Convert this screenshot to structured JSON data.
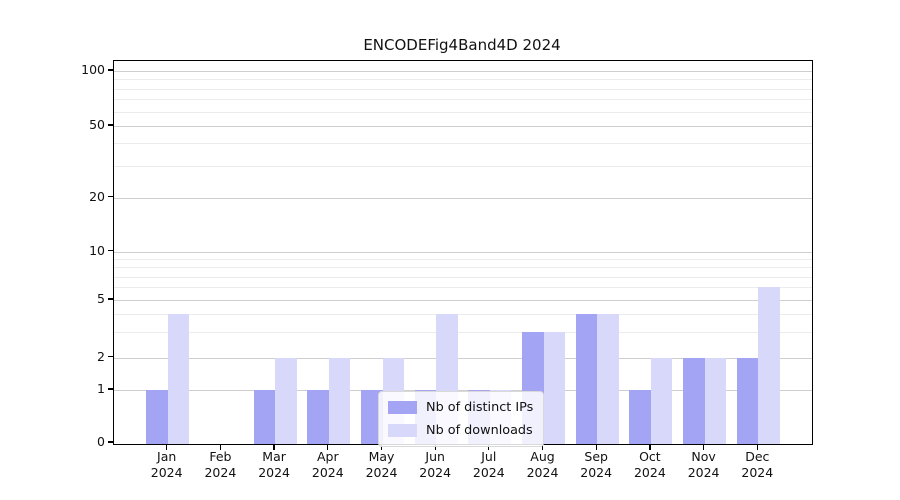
{
  "figure": {
    "title": "ENCODEFig4Band4D 2024"
  },
  "chart_data": {
    "type": "bar",
    "title": "ENCODEFig4Band4D 2024",
    "categories": [
      "Jan 2024",
      "Feb 2024",
      "Mar 2024",
      "Apr 2024",
      "May 2024",
      "Jun 2024",
      "Jul 2024",
      "Aug 2024",
      "Sep 2024",
      "Oct 2024",
      "Nov 2024",
      "Dec 2024"
    ],
    "series": [
      {
        "name": "Nb of distinct IPs",
        "color": "#a4a4f5",
        "values": [
          1,
          0,
          1,
          1,
          1,
          1,
          1,
          3,
          4,
          1,
          2,
          2
        ]
      },
      {
        "name": "Nb of downloads",
        "color": "#d8d8fa",
        "values": [
          4,
          0,
          2,
          2,
          2,
          4,
          1,
          3,
          4,
          2,
          2,
          6
        ]
      }
    ],
    "xlabel": "",
    "ylabel": "",
    "yscale": "symlog",
    "ylim": [
      0,
      100
    ],
    "yticks": [
      0,
      1,
      2,
      5,
      10,
      20,
      50,
      100
    ],
    "minor_yticks": [
      3,
      4,
      6,
      7,
      8,
      9,
      30,
      40,
      60,
      70,
      80,
      90
    ],
    "grid": true,
    "legend_position": "lower center"
  },
  "colors": {
    "bar_dark": "#a4a4f5",
    "bar_light": "#d8d8fa",
    "major_grid": "#cfcfcf",
    "minor_grid": "#ececec",
    "axis": "#000000",
    "text": "#111111",
    "legend_border": "#d9d9d9"
  }
}
